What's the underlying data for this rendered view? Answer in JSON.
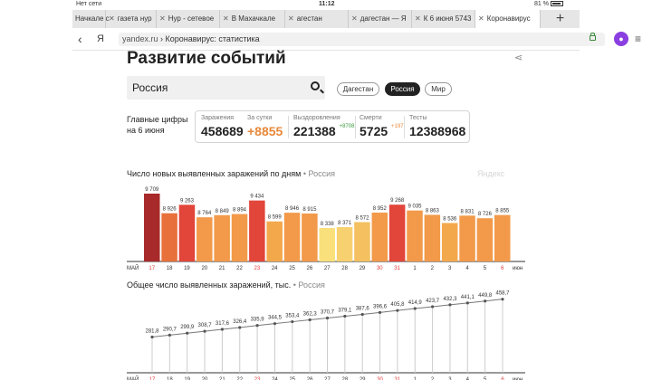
{
  "statusbar": {
    "carrier": "Нет сети",
    "time": "11:12",
    "battery": "81 %"
  },
  "tabs": [
    {
      "label": "Начкале с"
    },
    {
      "label": "газета нур"
    },
    {
      "label": "Нур - сетевое"
    },
    {
      "label": "В Махачкале"
    },
    {
      "label": "агестан"
    },
    {
      "label": "дагестан — Я"
    },
    {
      "label": "К 6 июня 5743"
    },
    {
      "label": "Коронавирус"
    }
  ],
  "addressbar": {
    "host": "yandex.ru",
    "path": "Коронавирус: статистика",
    "brand": "Я"
  },
  "page": {
    "title": "Развитие событий",
    "search_value": "Россия",
    "regions": [
      "Дагестан",
      "Россия",
      "Мир"
    ],
    "main_label_1": "Главные цифры",
    "main_label_2": "на 6 июня",
    "stats": {
      "infected_label": "Заражения",
      "infected": "458689",
      "day_label": "За сутки",
      "day": "+8855",
      "recovered_label": "Выздоровления",
      "recovered": "221388",
      "recovered_delta": "+8708",
      "deaths_label": "Смерти",
      "deaths": "5725",
      "deaths_delta": "+197",
      "tests_label": "Тесты",
      "tests": "12388968"
    },
    "chart1_title": "Число новых выявленных заражений по дням",
    "chart1_sub": "• Россия",
    "chart2_title": "Общее число выявленных заражений, тыс.",
    "chart2_sub": "• Россия",
    "watermark": "Яндекс"
  },
  "chart_data": [
    {
      "type": "bar",
      "categories": [
        "17",
        "18",
        "19",
        "20",
        "21",
        "22",
        "23",
        "24",
        "25",
        "26",
        "27",
        "28",
        "29",
        "30",
        "31",
        "1",
        "2",
        "3",
        "4",
        "5",
        "6"
      ],
      "values": [
        9709,
        8926,
        9263,
        8764,
        8849,
        8894,
        9434,
        8599,
        8946,
        8915,
        8338,
        8371,
        8572,
        8952,
        9268,
        9035,
        8863,
        8536,
        8831,
        8726,
        8855
      ],
      "labels": [
        "9 709",
        "8 926",
        "9 263",
        "8 764",
        "8 849",
        "8 894",
        "9 434",
        "8 599",
        "8 946",
        "8 915",
        "8 338",
        "8 371",
        "8 572",
        "8 952",
        "9 268",
        "9 035",
        "8 863",
        "8 536",
        "8 831",
        "8 726",
        "8 855"
      ],
      "colors": [
        "#a82a2a",
        "#e8703a",
        "#e2453a",
        "#f29a4a",
        "#f29a4a",
        "#f29a4a",
        "#e2453a",
        "#f4a84c",
        "#f29a4a",
        "#f29a4a",
        "#f9e07a",
        "#f7d070",
        "#f4c060",
        "#f29a4a",
        "#e2453a",
        "#f29a4a",
        "#f29a4a",
        "#f4a84c",
        "#f29a4a",
        "#f29a4a",
        "#f29a4a"
      ],
      "red_ticks": [
        "17",
        "23",
        "30",
        "31",
        "6"
      ],
      "month_left": "МАЙ",
      "month_right": "июн",
      "title": "Число новых выявленных заражений по дням"
    },
    {
      "type": "line",
      "categories": [
        "17",
        "18",
        "19",
        "20",
        "21",
        "22",
        "23",
        "24",
        "25",
        "26",
        "27",
        "28",
        "29",
        "30",
        "31",
        "1",
        "2",
        "3",
        "4",
        "5",
        "6"
      ],
      "values": [
        281.8,
        290.7,
        299.9,
        308.7,
        317.6,
        326.4,
        335.9,
        344.5,
        353.4,
        362.3,
        370.7,
        379.1,
        387.6,
        396.6,
        405.8,
        414.9,
        423.7,
        432.3,
        441.1,
        449.8,
        458.7
      ],
      "labels": [
        "281,8",
        "290,7",
        "299,9",
        "308,7",
        "317,6",
        "326,4",
        "335,9",
        "344,5",
        "353,4",
        "362,3",
        "370,7",
        "379,1",
        "387,6",
        "396,6",
        "405,8",
        "414,9",
        "423,7",
        "432,3",
        "441,1",
        "449,8",
        "458,7"
      ],
      "red_ticks": [
        "17",
        "23",
        "30",
        "31",
        "6"
      ],
      "month_left": "МАЙ",
      "month_right": "июн",
      "title": "Общее число выявленных заражений, тыс."
    }
  ]
}
